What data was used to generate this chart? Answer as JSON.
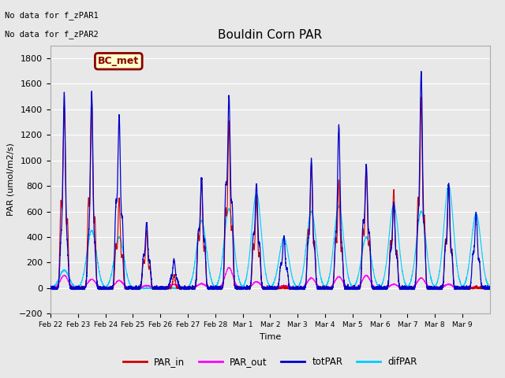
{
  "title": "Bouldin Corn PAR",
  "ylabel": "PAR (umol/m2/s)",
  "xlabel": "Time",
  "ylim": [
    -200,
    1900
  ],
  "yticks": [
    -200,
    0,
    200,
    400,
    600,
    800,
    1000,
    1200,
    1400,
    1600,
    1800
  ],
  "bg_color": "#e8e8e8",
  "plot_bg_color": "#e8e8e8",
  "no_data_text": [
    "No data for f_zPAR1",
    "No data for f_zPAR2"
  ],
  "legend_labels": [
    "PAR_in",
    "PAR_out",
    "totPAR",
    "difPAR"
  ],
  "legend_colors": [
    "#cc0000",
    "#ff00ff",
    "#0000cc",
    "#00ccff"
  ],
  "bc_met_label": "BC_met",
  "bc_met_bg": "#ffffcc",
  "bc_met_border": "#8b0000",
  "xtick_labels": [
    "Feb 22",
    "Feb 23",
    "Feb 24",
    "Feb 25",
    "Feb 26",
    "Feb 27",
    "Feb 28",
    "Mar 1",
    "Mar 2",
    "Mar 3",
    "Mar 4",
    "Mar 5",
    "Mar 6",
    "Mar 7",
    "Mar 8",
    "Mar 9"
  ],
  "n_days": 16,
  "peaks_totPAR": [
    1510,
    1530,
    1350,
    510,
    220,
    860,
    1500,
    820,
    400,
    1000,
    1270,
    960,
    660,
    1690,
    810,
    580
  ],
  "peaks_difPAR": [
    140,
    450,
    400,
    0,
    0,
    530,
    620,
    740,
    390,
    600,
    640,
    400,
    650,
    600,
    800,
    580
  ],
  "peaks_PARin": [
    1430,
    1470,
    700,
    450,
    100,
    860,
    1300,
    720,
    10,
    960,
    840,
    960,
    770,
    1490,
    800,
    10
  ],
  "peaks_PARout": [
    100,
    70,
    60,
    20,
    30,
    35,
    160,
    50,
    20,
    80,
    90,
    100,
    30,
    80,
    30,
    10
  ],
  "secondary_totPAR": [
    670,
    650,
    1200,
    450,
    140,
    810,
    1480,
    750,
    320,
    650,
    640,
    940,
    530,
    930,
    590,
    470
  ],
  "secondary_difPAR": [
    0,
    200,
    300,
    0,
    0,
    200,
    540,
    620,
    280,
    500,
    580,
    350,
    450,
    550,
    600,
    450
  ]
}
